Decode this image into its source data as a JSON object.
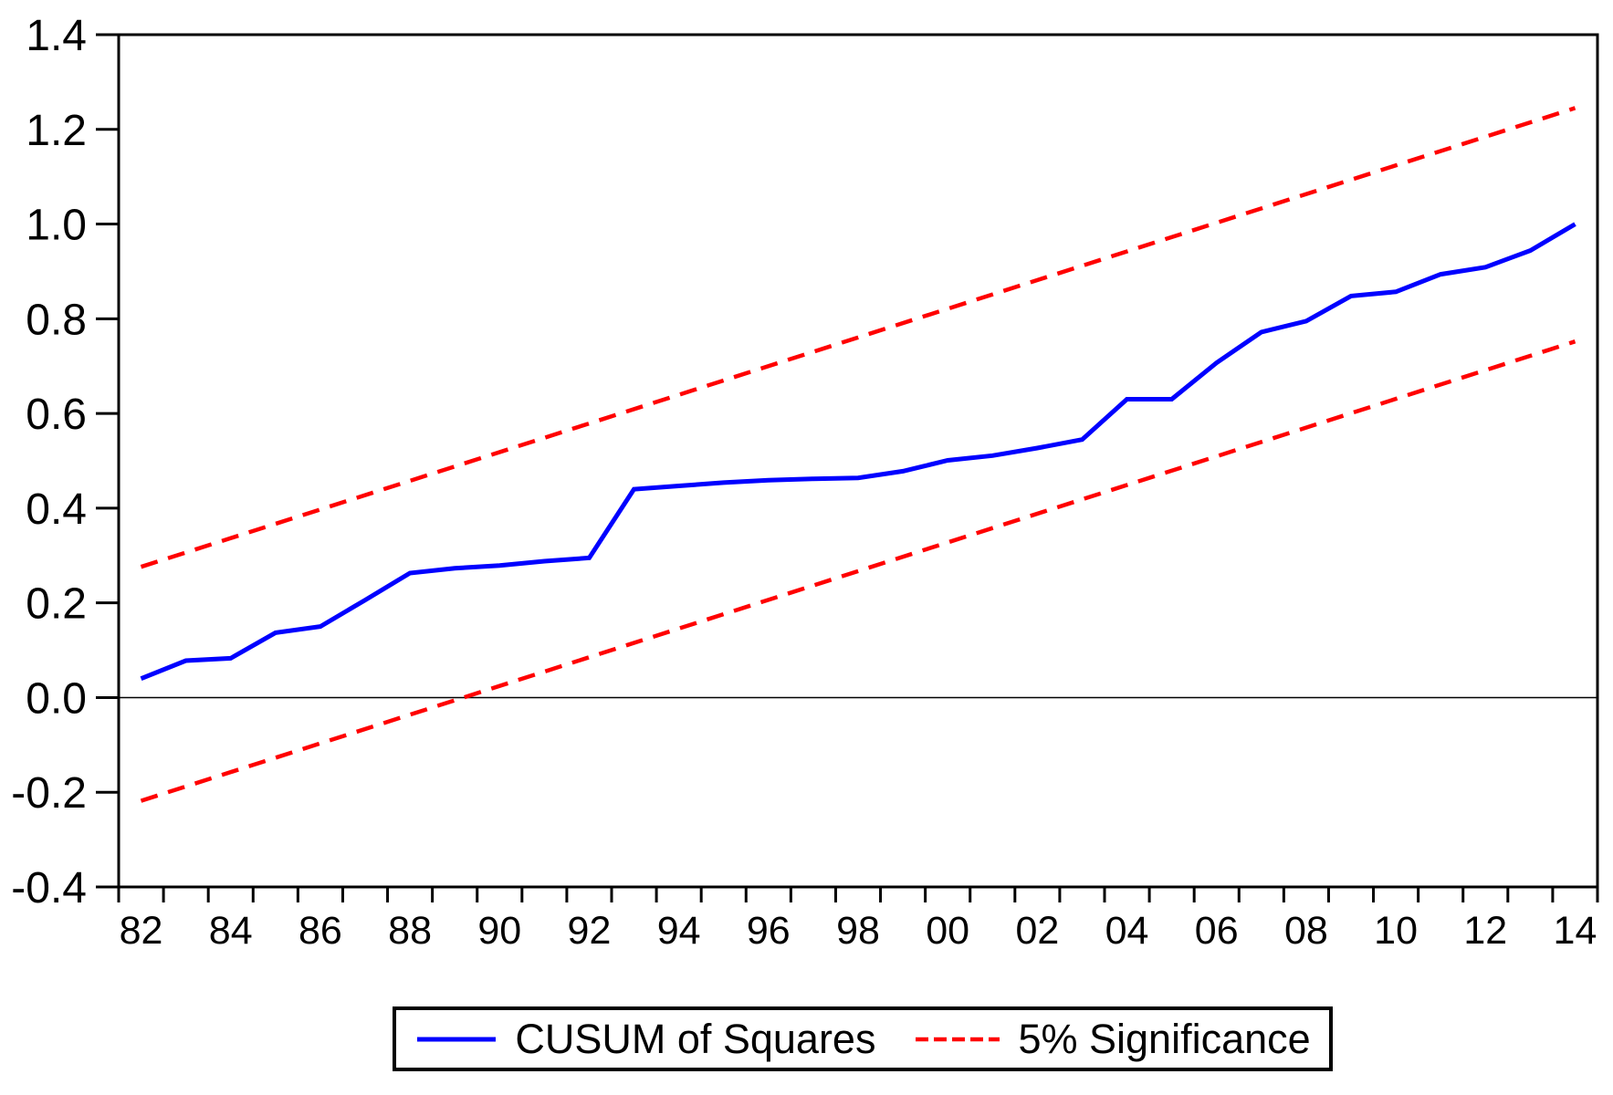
{
  "legend": {
    "items": [
      {
        "label": "CUSUM of Squares",
        "color": "#0000ff",
        "style": "solid"
      },
      {
        "label": "5% Significance",
        "color": "#ff0000",
        "style": "dashed"
      }
    ]
  },
  "chart_data": {
    "type": "line",
    "title": "",
    "xlabel": "",
    "ylabel": "",
    "grid": false,
    "legend_position": "bottom-center",
    "x_axis": {
      "start_year": 1982,
      "end_year": 2014,
      "tick_every_years": 1,
      "label_every_years": 2,
      "tick_labels": [
        "82",
        "84",
        "86",
        "88",
        "90",
        "92",
        "94",
        "96",
        "98",
        "00",
        "02",
        "04",
        "06",
        "08",
        "10",
        "12",
        "14"
      ]
    },
    "y_axis": {
      "min": -0.4,
      "max": 1.4,
      "tick_step": 0.2,
      "tick_labels": [
        "1.4",
        "1.2",
        "1.0",
        "0.8",
        "0.6",
        "0.4",
        "0.2",
        "0.0",
        "-0.2",
        "-0.4"
      ]
    },
    "zero_line": 0.0,
    "series": [
      {
        "name": "CUSUM of Squares",
        "color": "#0000ff",
        "style": "solid",
        "x": [
          1982,
          1983,
          1984,
          1985,
          1986,
          1987,
          1988,
          1989,
          1990,
          1991,
          1992,
          1993,
          1994,
          1995,
          1996,
          1997,
          1998,
          1999,
          2000,
          2001,
          2002,
          2003,
          2004,
          2005,
          2006,
          2007,
          2008,
          2009,
          2010,
          2011,
          2012,
          2013,
          2014
        ],
        "values": [
          0.04,
          0.078,
          0.083,
          0.137,
          0.15,
          0.206,
          0.263,
          0.273,
          0.279,
          0.288,
          0.295,
          0.44,
          0.447,
          0.454,
          0.459,
          0.462,
          0.464,
          0.478,
          0.501,
          0.511,
          0.527,
          0.545,
          0.63,
          0.63,
          0.707,
          0.772,
          0.795,
          0.848,
          0.857,
          0.894,
          0.909,
          0.944,
          1.0
        ]
      },
      {
        "name": "5% Significance upper bound",
        "color": "#ff0000",
        "style": "dashed",
        "x": [
          1982,
          2014
        ],
        "values": [
          0.276,
          1.245
        ]
      },
      {
        "name": "5% Significance lower bound",
        "color": "#ff0000",
        "style": "dashed",
        "x": [
          1982,
          2014
        ],
        "values": [
          -0.218,
          0.752
        ]
      }
    ]
  }
}
